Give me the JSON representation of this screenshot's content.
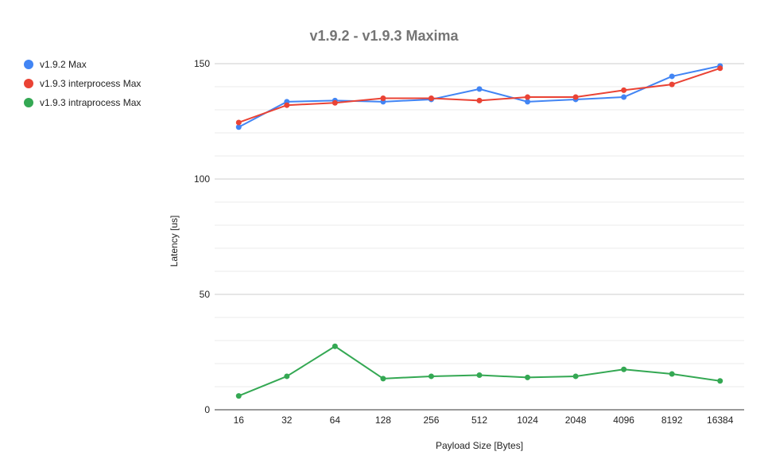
{
  "chart_data": {
    "type": "line",
    "title": "v1.9.2 - v1.9.3 Maxima",
    "xlabel": "Payload Size [Bytes]",
    "ylabel": "Latency [us]",
    "categories": [
      "16",
      "32",
      "64",
      "128",
      "256",
      "512",
      "1024",
      "2048",
      "4096",
      "8192",
      "16384"
    ],
    "ylim": [
      0,
      150
    ],
    "yticks": [
      0,
      50,
      100,
      150
    ],
    "grid": true,
    "legend_position": "left",
    "series": [
      {
        "name": "v1.9.2 Max",
        "color": "#4285f4",
        "values": [
          122.5,
          133.5,
          134,
          133.5,
          134.5,
          139,
          133.5,
          134.5,
          135.5,
          144.5,
          149
        ]
      },
      {
        "name": "v1.9.3 interprocess Max",
        "color": "#ea4335",
        "values": [
          124.5,
          132,
          133,
          135,
          135,
          134,
          135.5,
          135.5,
          138.5,
          141,
          148
        ]
      },
      {
        "name": "v1.9.3 intraprocess Max",
        "color": "#34a853",
        "values": [
          6,
          14.5,
          27.5,
          13.5,
          14.5,
          15,
          14,
          14.5,
          17.5,
          15.5,
          12.5
        ]
      }
    ]
  }
}
